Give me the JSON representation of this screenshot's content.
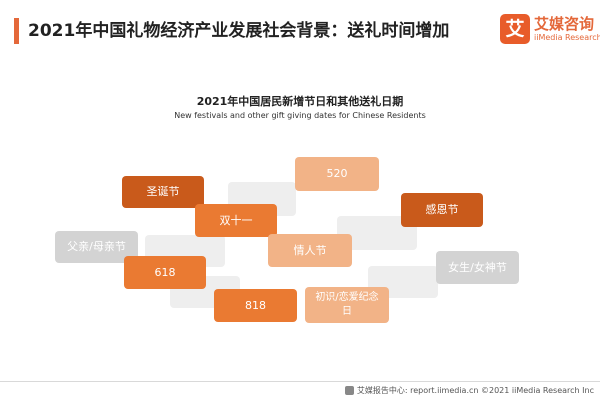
{
  "header": {
    "title": "2021年中国礼物经济产业发展社会背景：送礼时间增加",
    "logo_glyph": "艾",
    "logo_cn": "艾媒咨询",
    "logo_en": "iiMedia Research"
  },
  "chart_data": {
    "type": "table",
    "title": "2021年中国居民新增节日和其他送礼日期",
    "subtitle": "New festivals and other gift giving dates for Chinese Residents",
    "items": [
      {
        "label": "圣诞节",
        "color": "#c95a1b"
      },
      {
        "label": "520",
        "color": "#f2b387"
      },
      {
        "label": "双十一",
        "color": "#ea7a32"
      },
      {
        "label": "感恩节",
        "color": "#c95a1b"
      },
      {
        "label": "父亲/母亲节",
        "color": "#d3d3d3"
      },
      {
        "label": "情人节",
        "color": "#f2b387"
      },
      {
        "label": "618",
        "color": "#ea7a32"
      },
      {
        "label": "女生/女神节",
        "color": "#d3d3d3"
      },
      {
        "label": "818",
        "color": "#ea7a32"
      },
      {
        "label": "初识/恋爱纪念日",
        "color": "#f2b387"
      }
    ]
  },
  "footer": {
    "text": "艾媒报告中心: report.iimedia.cn  ©2021  iiMedia Research  Inc"
  }
}
